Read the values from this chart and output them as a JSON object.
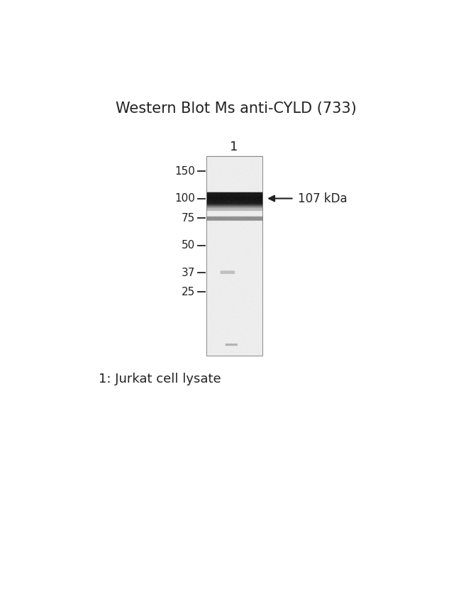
{
  "title": "Western Blot Ms anti-CYLD (733)",
  "title_fontsize": 15,
  "background_color": "#ffffff",
  "lane_label": "1",
  "mw_markers": [
    150,
    100,
    75,
    50,
    37,
    25
  ],
  "band_annotation": "107 kDa",
  "caption": "1: Jurkat cell lysate",
  "caption_fontsize": 13,
  "gel_color_bg": 0.93,
  "main_band_darkness": 0.08,
  "secondary_band_darkness": 0.55,
  "smear_darkness": 0.72
}
